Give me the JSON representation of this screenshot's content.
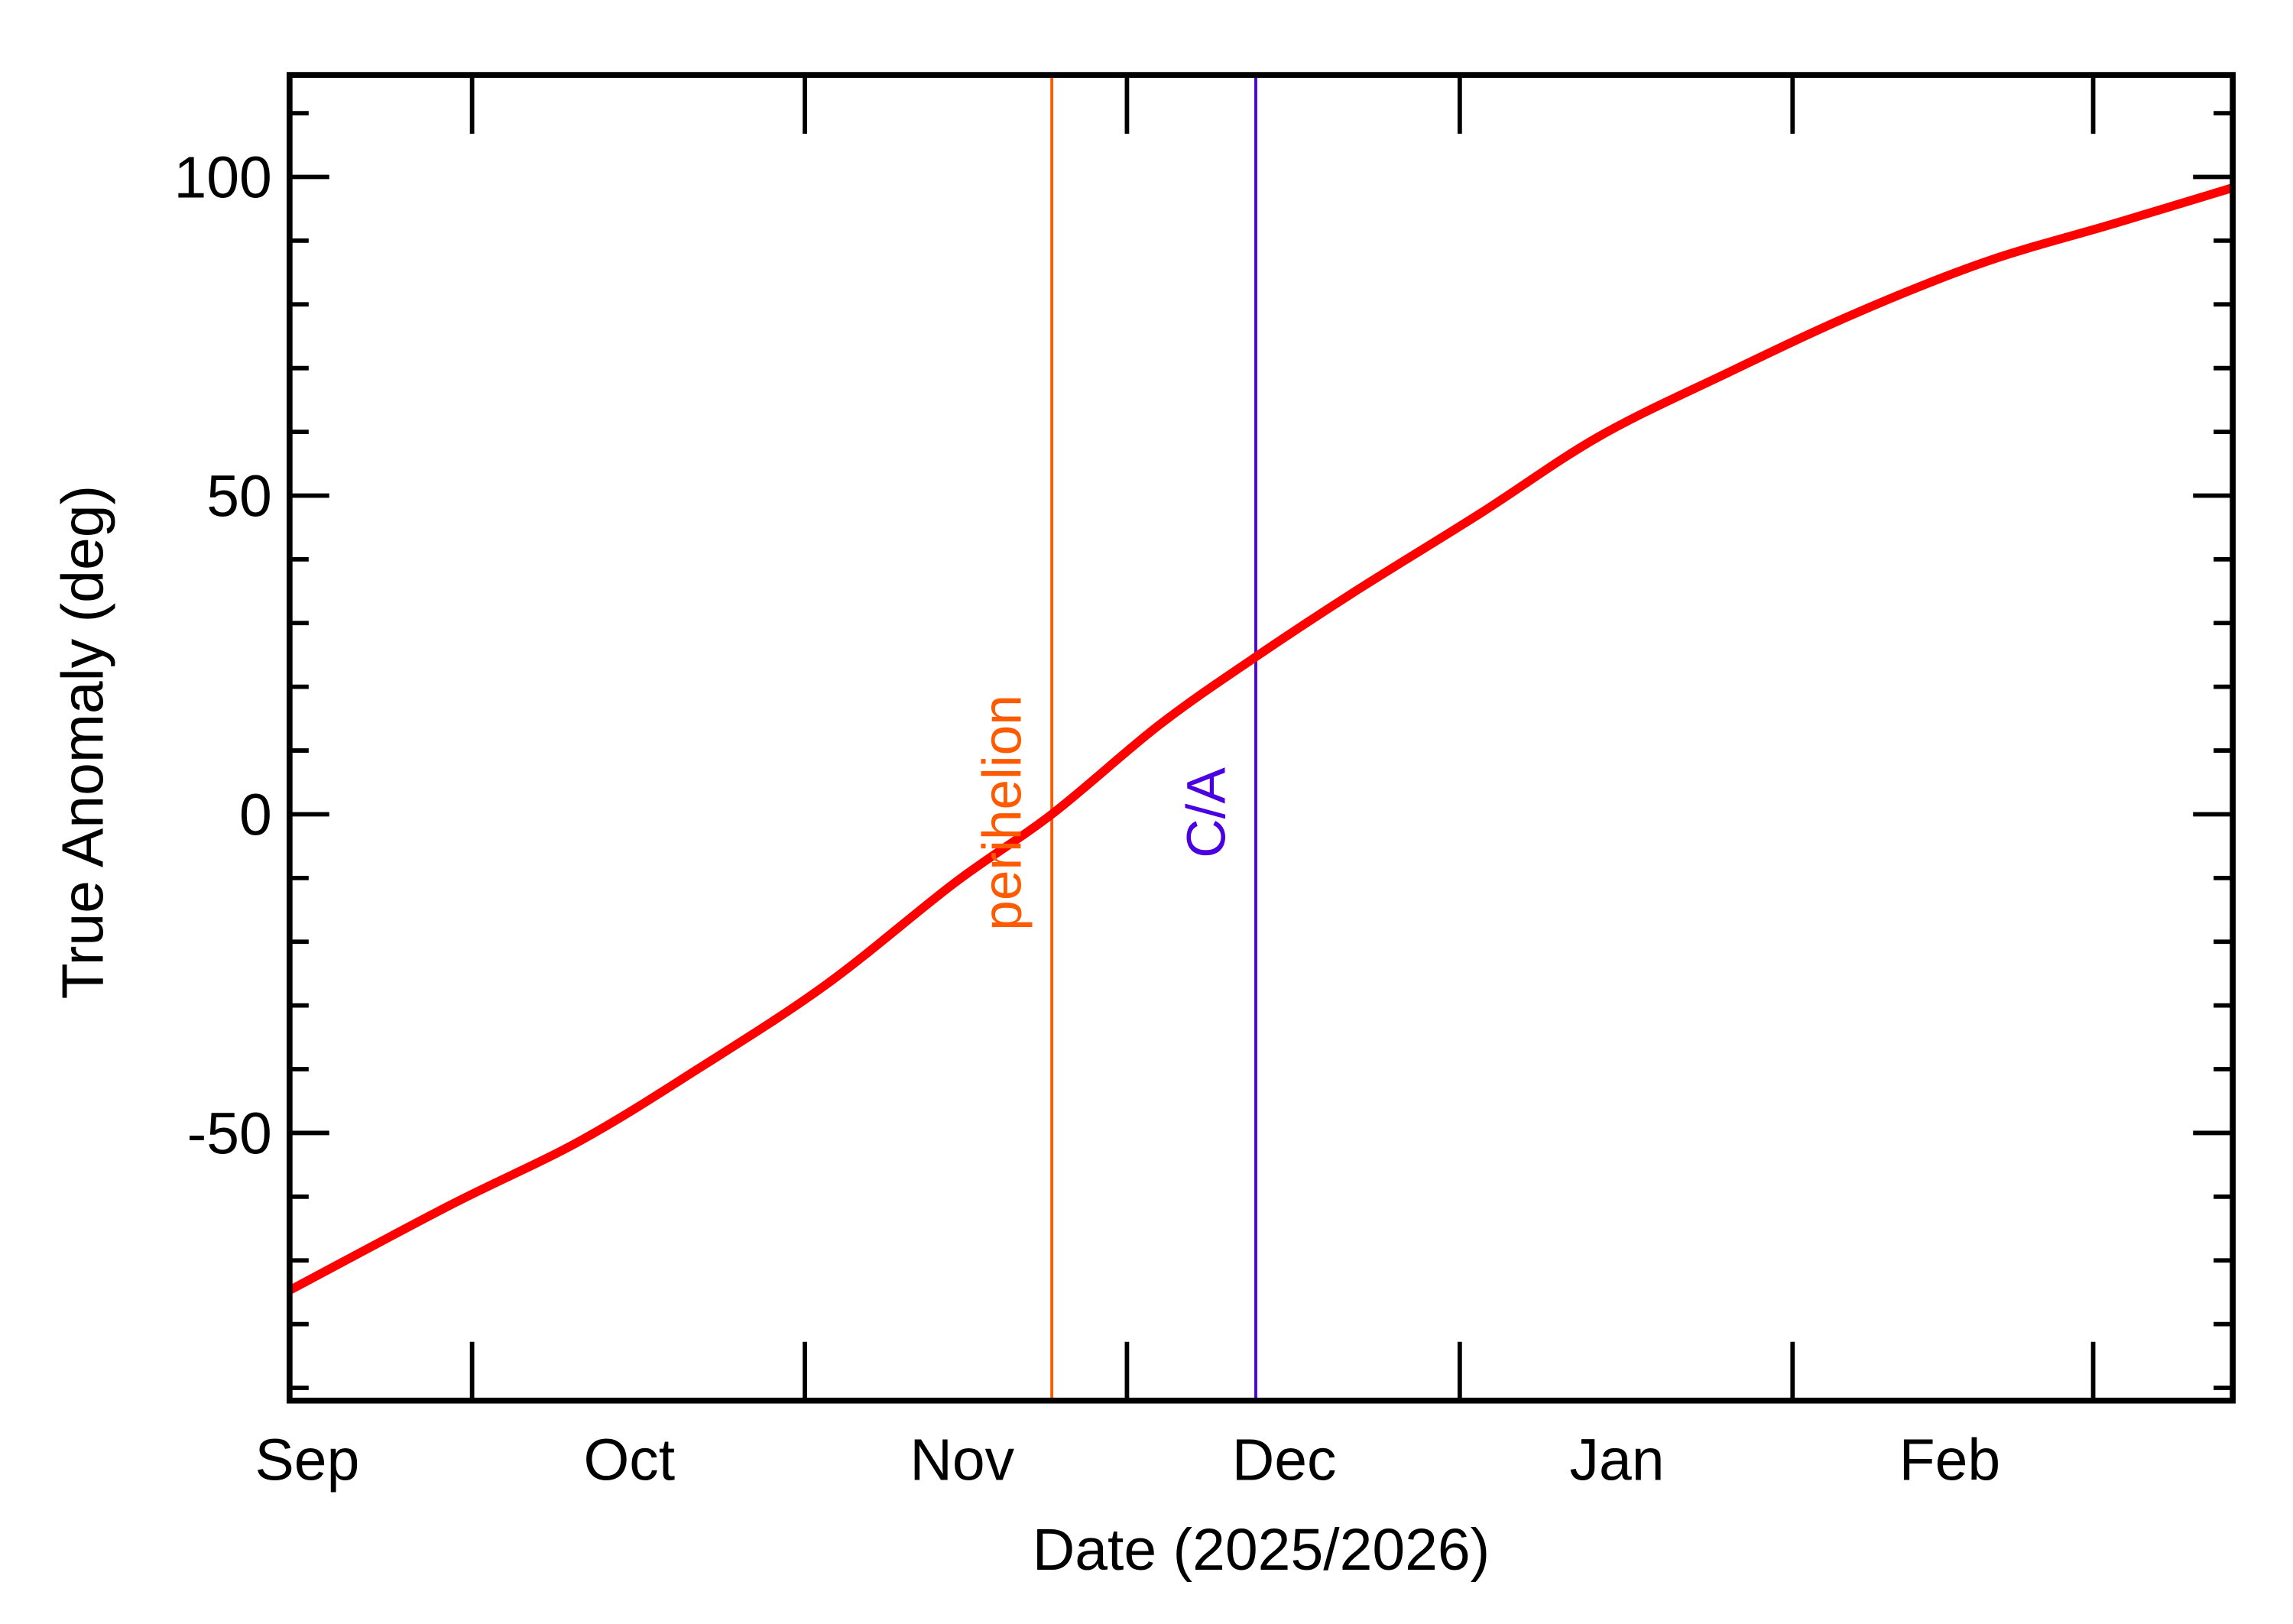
{
  "chart_data": {
    "type": "line",
    "title": "",
    "xlabel": "Date (2025/2026)",
    "ylabel": "True Anomaly (deg)",
    "xlim": [
      "2025-09-01",
      "2026-03-01"
    ],
    "ylim": [
      -92,
      116
    ],
    "grid": false,
    "x_tick_labels": [
      {
        "label": "Sep",
        "date": "2025-09-01"
      },
      {
        "label": "Oct",
        "date": "2025-10-01"
      },
      {
        "label": "Nov",
        "date": "2025-11-01"
      },
      {
        "label": "Dec",
        "date": "2025-12-01"
      },
      {
        "label": "Jan",
        "date": "2026-01-01"
      },
      {
        "label": "Feb",
        "date": "2026-02-01"
      }
    ],
    "x_major_ticks": [
      "2025-09-18",
      "2025-10-19",
      "2025-11-18",
      "2025-12-19",
      "2026-01-19",
      "2026-02-16"
    ],
    "y_ticks": [
      {
        "value": 100,
        "label": "100"
      },
      {
        "value": 50,
        "label": "50"
      },
      {
        "value": 0,
        "label": "0"
      },
      {
        "value": -50,
        "label": "-50"
      }
    ],
    "y_minor_step": 10,
    "series": [
      {
        "color": "#ff0000",
        "x": [
          "2025-09-01",
          "2025-09-16",
          "2025-09-28",
          "2025-10-09",
          "2025-10-21",
          "2025-11-02",
          "2025-11-11",
          "2025-11-21",
          "2025-11-30",
          "2025-12-09",
          "2025-12-21",
          "2026-01-01",
          "2026-01-13",
          "2026-01-25",
          "2026-02-06",
          "2026-02-18",
          "2026-03-01"
        ],
        "y": [
          -74.7,
          -61.3,
          -51.3,
          -40,
          -26.7,
          -10.7,
          0,
          14,
          24.7,
          34.7,
          47.3,
          59.3,
          69.3,
          78.7,
          86.7,
          92.7,
          98.3
        ]
      }
    ],
    "annotations": [
      {
        "label": "perihelion",
        "date": "2025-11-11",
        "color": "#ff5a00"
      },
      {
        "label": "C/A",
        "date": "2025-11-30",
        "color": "#4a00e0"
      }
    ]
  }
}
